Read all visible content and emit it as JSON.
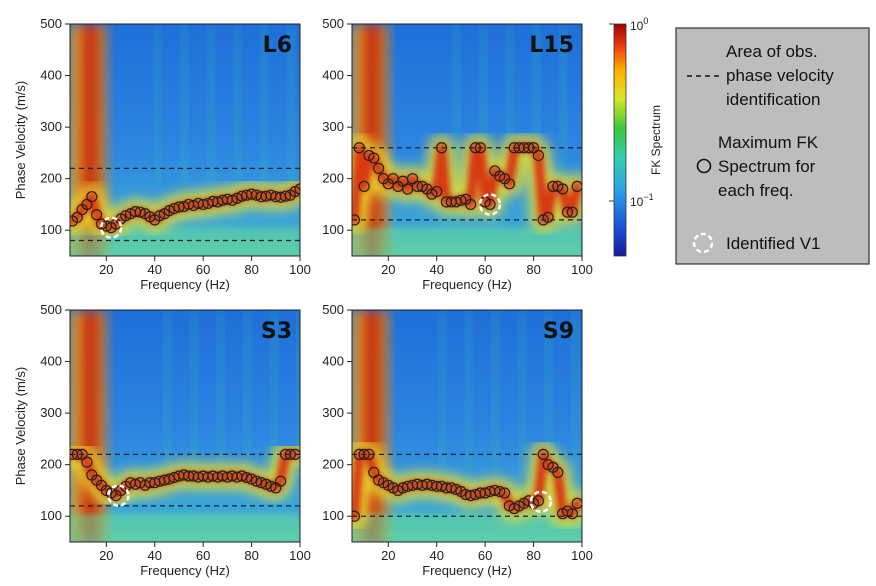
{
  "chart_data": [
    {
      "type": "heatmap",
      "panel_label": "L6",
      "xlabel": "Frequency (Hz)",
      "ylabel": "Phase Velocity (m/s)",
      "xlim": [
        5,
        100
      ],
      "ylim": [
        50,
        500
      ],
      "x_ticks": [
        "20",
        "40",
        "60",
        "80",
        "100"
      ],
      "y_ticks": [
        "100",
        "200",
        "300",
        "400",
        "500"
      ],
      "dashed_lines": [
        220,
        80
      ],
      "max_fk_points": [
        [
          6,
          118
        ],
        [
          8,
          125
        ],
        [
          10,
          140
        ],
        [
          12,
          150
        ],
        [
          14,
          165
        ],
        [
          16,
          130
        ],
        [
          18,
          112
        ],
        [
          20,
          108
        ],
        [
          22,
          105
        ],
        [
          24,
          112
        ],
        [
          26,
          122
        ],
        [
          28,
          128
        ],
        [
          30,
          132
        ],
        [
          32,
          136
        ],
        [
          34,
          135
        ],
        [
          36,
          132
        ],
        [
          38,
          126
        ],
        [
          40,
          120
        ],
        [
          42,
          128
        ],
        [
          44,
          132
        ],
        [
          46,
          138
        ],
        [
          48,
          142
        ],
        [
          50,
          145
        ],
        [
          52,
          146
        ],
        [
          54,
          150
        ],
        [
          56,
          148
        ],
        [
          58,
          152
        ],
        [
          60,
          150
        ],
        [
          62,
          152
        ],
        [
          64,
          156
        ],
        [
          66,
          155
        ],
        [
          68,
          158
        ],
        [
          70,
          160
        ],
        [
          72,
          158
        ],
        [
          74,
          162
        ],
        [
          76,
          166
        ],
        [
          78,
          168
        ],
        [
          80,
          170
        ],
        [
          82,
          168
        ],
        [
          84,
          165
        ],
        [
          86,
          166
        ],
        [
          88,
          168
        ],
        [
          90,
          165
        ],
        [
          92,
          164
        ],
        [
          94,
          166
        ],
        [
          96,
          168
        ],
        [
          98,
          175
        ],
        [
          100,
          180
        ]
      ],
      "identified_v1": [
        22,
        105
      ]
    },
    {
      "type": "heatmap",
      "panel_label": "L15",
      "xlabel": "Frequency (Hz)",
      "ylabel": "",
      "xlim": [
        5,
        100
      ],
      "ylim": [
        50,
        500
      ],
      "x_ticks": [
        "20",
        "40",
        "60",
        "80",
        "100"
      ],
      "y_ticks": [
        "100",
        "200",
        "300",
        "400",
        "500"
      ],
      "dashed_lines": [
        260,
        120
      ],
      "max_fk_points": [
        [
          6,
          120
        ],
        [
          8,
          260
        ],
        [
          10,
          185
        ],
        [
          12,
          245
        ],
        [
          14,
          240
        ],
        [
          16,
          220
        ],
        [
          18,
          200
        ],
        [
          20,
          190
        ],
        [
          22,
          200
        ],
        [
          24,
          185
        ],
        [
          26,
          195
        ],
        [
          28,
          180
        ],
        [
          30,
          200
        ],
        [
          32,
          185
        ],
        [
          34,
          185
        ],
        [
          36,
          180
        ],
        [
          38,
          170
        ],
        [
          40,
          175
        ],
        [
          42,
          260
        ],
        [
          44,
          155
        ],
        [
          46,
          155
        ],
        [
          48,
          155
        ],
        [
          50,
          158
        ],
        [
          52,
          160
        ],
        [
          54,
          150
        ],
        [
          56,
          260
        ],
        [
          58,
          260
        ],
        [
          60,
          155
        ],
        [
          62,
          150
        ],
        [
          64,
          215
        ],
        [
          66,
          205
        ],
        [
          68,
          200
        ],
        [
          70,
          190
        ],
        [
          72,
          260
        ],
        [
          74,
          260
        ],
        [
          76,
          260
        ],
        [
          78,
          260
        ],
        [
          80,
          260
        ],
        [
          82,
          245
        ],
        [
          84,
          120
        ],
        [
          86,
          125
        ],
        [
          88,
          185
        ],
        [
          90,
          185
        ],
        [
          92,
          180
        ],
        [
          94,
          135
        ],
        [
          96,
          135
        ],
        [
          98,
          185
        ]
      ],
      "identified_v1": [
        62,
        150
      ]
    },
    {
      "type": "heatmap",
      "panel_label": "S3",
      "xlabel": "Frequency (Hz)",
      "ylabel": "Phase Velocity (m/s)",
      "xlim": [
        5,
        100
      ],
      "ylim": [
        50,
        500
      ],
      "x_ticks": [
        "20",
        "40",
        "60",
        "80",
        "100"
      ],
      "y_ticks": [
        "100",
        "200",
        "300",
        "400",
        "500"
      ],
      "dashed_lines": [
        220,
        120
      ],
      "max_fk_points": [
        [
          6,
          220
        ],
        [
          8,
          220
        ],
        [
          10,
          220
        ],
        [
          12,
          205
        ],
        [
          14,
          180
        ],
        [
          16,
          170
        ],
        [
          18,
          160
        ],
        [
          20,
          150
        ],
        [
          22,
          145
        ],
        [
          24,
          140
        ],
        [
          26,
          150
        ],
        [
          28,
          158
        ],
        [
          30,
          165
        ],
        [
          32,
          162
        ],
        [
          34,
          165
        ],
        [
          36,
          160
        ],
        [
          38,
          165
        ],
        [
          40,
          165
        ],
        [
          42,
          168
        ],
        [
          44,
          170
        ],
        [
          46,
          172
        ],
        [
          48,
          175
        ],
        [
          50,
          178
        ],
        [
          52,
          180
        ],
        [
          54,
          178
        ],
        [
          56,
          178
        ],
        [
          58,
          176
        ],
        [
          60,
          178
        ],
        [
          62,
          176
        ],
        [
          64,
          178
        ],
        [
          66,
          176
        ],
        [
          68,
          178
        ],
        [
          70,
          176
        ],
        [
          72,
          178
        ],
        [
          74,
          176
        ],
        [
          76,
          178
        ],
        [
          78,
          175
        ],
        [
          80,
          172
        ],
        [
          82,
          168
        ],
        [
          84,
          165
        ],
        [
          86,
          162
        ],
        [
          88,
          158
        ],
        [
          90,
          155
        ],
        [
          92,
          168
        ],
        [
          94,
          220
        ],
        [
          96,
          220
        ],
        [
          98,
          220
        ]
      ],
      "identified_v1": [
        25,
        140
      ]
    },
    {
      "type": "heatmap",
      "panel_label": "S9",
      "xlabel": "Frequency (Hz)",
      "ylabel": "",
      "xlim": [
        5,
        100
      ],
      "ylim": [
        50,
        500
      ],
      "x_ticks": [
        "20",
        "40",
        "60",
        "80",
        "100"
      ],
      "y_ticks": [
        "100",
        "200",
        "300",
        "400",
        "500"
      ],
      "dashed_lines": [
        220,
        100
      ],
      "max_fk_points": [
        [
          6,
          100
        ],
        [
          8,
          220
        ],
        [
          10,
          220
        ],
        [
          12,
          220
        ],
        [
          14,
          185
        ],
        [
          16,
          170
        ],
        [
          18,
          165
        ],
        [
          20,
          160
        ],
        [
          22,
          155
        ],
        [
          24,
          150
        ],
        [
          26,
          155
        ],
        [
          28,
          158
        ],
        [
          30,
          160
        ],
        [
          32,
          162
        ],
        [
          34,
          160
        ],
        [
          36,
          162
        ],
        [
          38,
          160
        ],
        [
          40,
          158
        ],
        [
          42,
          158
        ],
        [
          44,
          155
        ],
        [
          46,
          155
        ],
        [
          48,
          152
        ],
        [
          50,
          148
        ],
        [
          52,
          142
        ],
        [
          54,
          140
        ],
        [
          56,
          142
        ],
        [
          58,
          145
        ],
        [
          60,
          145
        ],
        [
          62,
          148
        ],
        [
          64,
          150
        ],
        [
          66,
          148
        ],
        [
          68,
          145
        ],
        [
          70,
          120
        ],
        [
          72,
          115
        ],
        [
          74,
          120
        ],
        [
          76,
          125
        ],
        [
          78,
          130
        ],
        [
          80,
          125
        ],
        [
          82,
          130
        ],
        [
          84,
          220
        ],
        [
          86,
          200
        ],
        [
          88,
          195
        ],
        [
          90,
          185
        ],
        [
          92,
          105
        ],
        [
          94,
          110
        ],
        [
          96,
          105
        ],
        [
          98,
          125
        ]
      ],
      "identified_v1": [
        83,
        128
      ]
    }
  ],
  "colorbar": {
    "label": "FK Spectrum",
    "top_label": "10",
    "top_exp": "0",
    "mid_label": "10",
    "mid_exp": "−1"
  },
  "legend": {
    "item1": [
      "Area of obs.",
      "phase velocity",
      "identification"
    ],
    "item2": [
      "Maximum FK",
      "Spectrum for",
      "each freq."
    ],
    "item3": "Identified V1"
  }
}
